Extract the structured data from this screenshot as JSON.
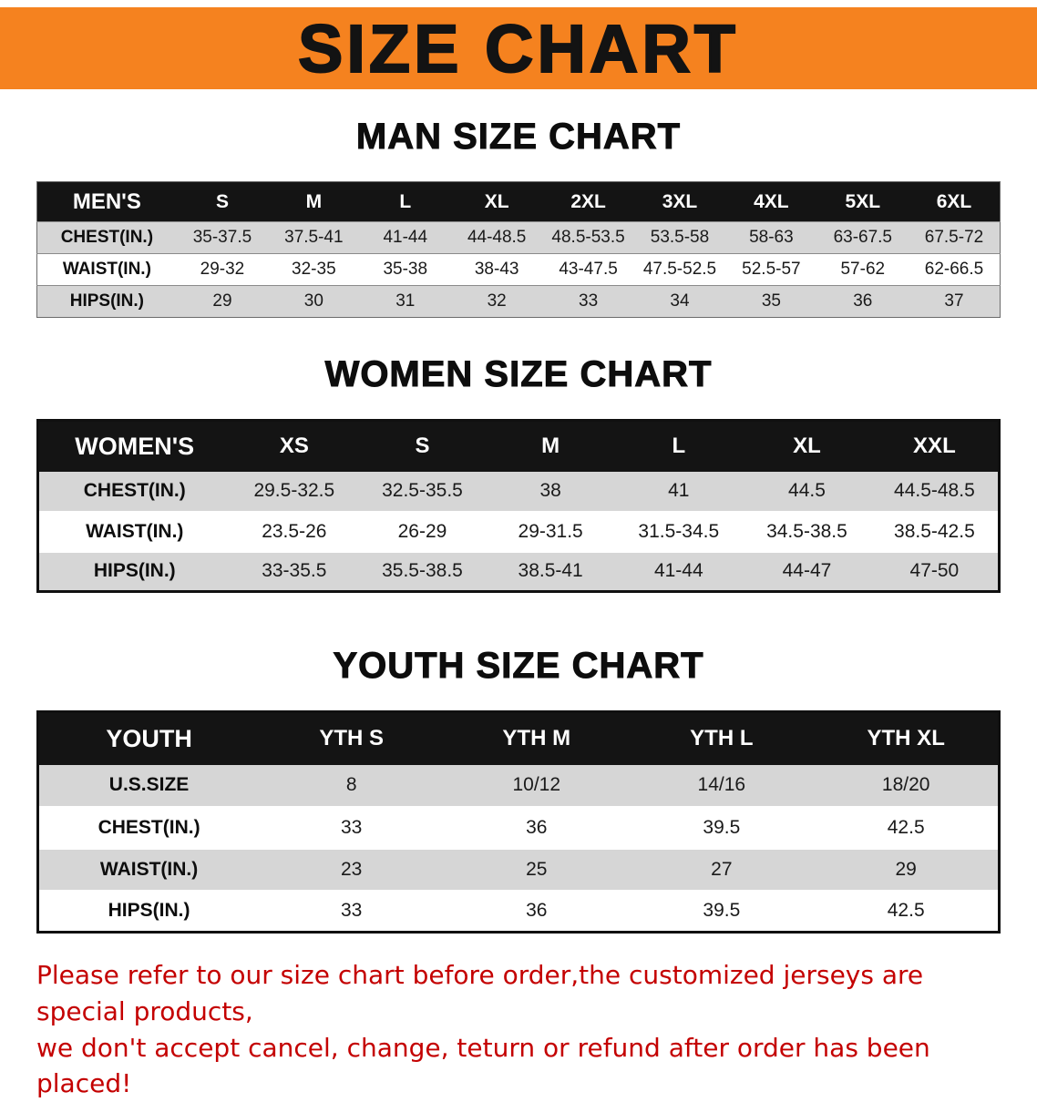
{
  "banner": {
    "title": "SIZE CHART"
  },
  "colors": {
    "banner_bg": "#F5821F",
    "table_header_bg": "#141414",
    "row_gray": "#D6D6D6",
    "disclaimer_red": "#C40000"
  },
  "sections": {
    "men": {
      "heading": "MAN SIZE CHART",
      "table": {
        "header": [
          "MEN'S",
          "S",
          "M",
          "L",
          "XL",
          "2XL",
          "3XL",
          "4XL",
          "5XL",
          "6XL"
        ],
        "rows": [
          [
            "CHEST(IN.)",
            "35-37.5",
            "37.5-41",
            "41-44",
            "44-48.5",
            "48.5-53.5",
            "53.5-58",
            "58-63",
            "63-67.5",
            "67.5-72"
          ],
          [
            "WAIST(IN.)",
            "29-32",
            "32-35",
            "35-38",
            "38-43",
            "43-47.5",
            "47.5-52.5",
            "52.5-57",
            "57-62",
            "62-66.5"
          ],
          [
            "HIPS(IN.)",
            "29",
            "30",
            "31",
            "32",
            "33",
            "34",
            "35",
            "36",
            "37"
          ]
        ]
      }
    },
    "women": {
      "heading": "WOMEN SIZE CHART",
      "table": {
        "header": [
          "WOMEN'S",
          "XS",
          "S",
          "M",
          "L",
          "XL",
          "XXL"
        ],
        "rows": [
          [
            "CHEST(IN.)",
            "29.5-32.5",
            "32.5-35.5",
            "38",
            "41",
            "44.5",
            "44.5-48.5"
          ],
          [
            "WAIST(IN.)",
            "23.5-26",
            "26-29",
            "29-31.5",
            "31.5-34.5",
            "34.5-38.5",
            "38.5-42.5"
          ],
          [
            "HIPS(IN.)",
            "33-35.5",
            "35.5-38.5",
            "38.5-41",
            "41-44",
            "44-47",
            "47-50"
          ]
        ]
      }
    },
    "youth": {
      "heading": "YOUTH SIZE CHART",
      "table": {
        "header": [
          "YOUTH",
          "YTH S",
          "YTH M",
          "YTH L",
          "YTH XL"
        ],
        "rows": [
          [
            "U.S.SIZE",
            "8",
            "10/12",
            "14/16",
            "18/20"
          ],
          [
            "CHEST(IN.)",
            "33",
            "36",
            "39.5",
            "42.5"
          ],
          [
            "WAIST(IN.)",
            "23",
            "25",
            "27",
            "29"
          ],
          [
            "HIPS(IN.)",
            "33",
            "36",
            "39.5",
            "42.5"
          ]
        ]
      }
    }
  },
  "disclaimer": {
    "line1": "Please refer to our size chart before order,the customized jerseys are special products,",
    "line2": "we don't accept cancel, change, teturn or refund after order has been placed!"
  }
}
